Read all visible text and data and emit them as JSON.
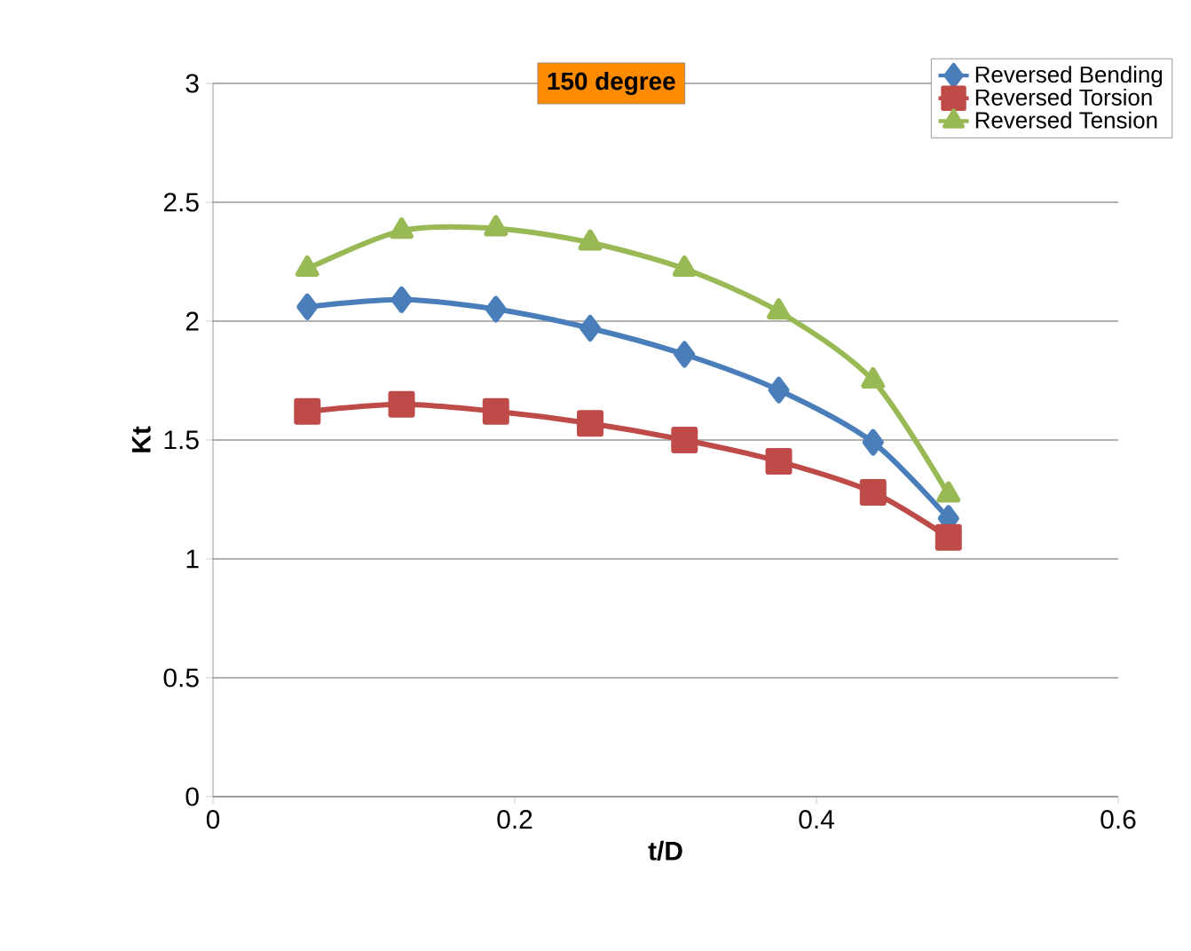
{
  "chart_data": {
    "type": "line",
    "xlabel": "t/D",
    "ylabel": "Kt",
    "annotations": [
      "150 degree"
    ],
    "x": [
      0.0625,
      0.125,
      0.1875,
      0.25,
      0.3125,
      0.375,
      0.4375,
      0.4875
    ],
    "series": [
      {
        "name": "Reversed Bending",
        "color": "#4a7ebb",
        "marker": "diamond",
        "values": [
          2.06,
          2.09,
          2.05,
          1.97,
          1.86,
          1.71,
          1.49,
          1.17
        ]
      },
      {
        "name": "Reversed Torsion",
        "color": "#be4b48",
        "marker": "square",
        "values": [
          1.62,
          1.65,
          1.62,
          1.57,
          1.5,
          1.41,
          1.28,
          1.09
        ]
      },
      {
        "name": "Reversed Tension",
        "color": "#98b954",
        "marker": "triangle",
        "values": [
          2.22,
          2.38,
          2.39,
          2.33,
          2.22,
          2.04,
          1.75,
          1.27
        ]
      }
    ],
    "xlim": [
      0,
      0.6
    ],
    "ylim": [
      0,
      3
    ],
    "xticks": [
      0,
      0.2,
      0.4,
      0.6
    ],
    "yticks": [
      0,
      0.5,
      1,
      1.5,
      2,
      2.5,
      3
    ],
    "grid": "y",
    "legend": "top right",
    "line_style": "solid"
  }
}
